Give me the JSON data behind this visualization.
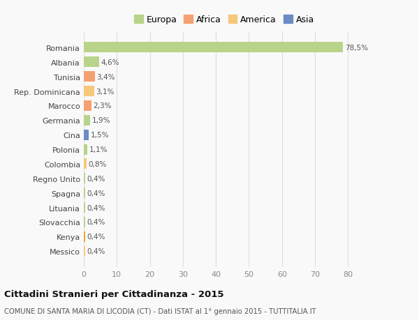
{
  "categories": [
    "Messico",
    "Kenya",
    "Slovacchia",
    "Lituania",
    "Spagna",
    "Regno Unito",
    "Colombia",
    "Polonia",
    "Cina",
    "Germania",
    "Marocco",
    "Rep. Dominicana",
    "Tunisia",
    "Albania",
    "Romania"
  ],
  "values": [
    0.4,
    0.4,
    0.4,
    0.4,
    0.4,
    0.4,
    0.8,
    1.1,
    1.5,
    1.9,
    2.3,
    3.1,
    3.4,
    4.6,
    78.5
  ],
  "labels": [
    "0,4%",
    "0,4%",
    "0,4%",
    "0,4%",
    "0,4%",
    "0,4%",
    "0,8%",
    "1,1%",
    "1,5%",
    "1,9%",
    "2,3%",
    "3,1%",
    "3,4%",
    "4,6%",
    "78,5%"
  ],
  "colors": [
    "#f5c87a",
    "#f5a623",
    "#b8d48a",
    "#b8d48a",
    "#b8d48a",
    "#b8d48a",
    "#f5c87a",
    "#b8d48a",
    "#6b8dc4",
    "#b8d48a",
    "#f5a070",
    "#f5c87a",
    "#f5a070",
    "#b8d48a",
    "#b8d48a"
  ],
  "legend": [
    {
      "label": "Europa",
      "color": "#b8d48a"
    },
    {
      "label": "Africa",
      "color": "#f5a070"
    },
    {
      "label": "America",
      "color": "#f5c87a"
    },
    {
      "label": "Asia",
      "color": "#6b8dc4"
    }
  ],
  "title": "Cittadini Stranieri per Cittadinanza - 2015",
  "subtitle": "COMUNE DI SANTA MARIA DI LICODIA (CT) - Dati ISTAT al 1° gennaio 2015 - TUTTITALIA.IT",
  "xlim": [
    0,
    85
  ],
  "xticks": [
    0,
    10,
    20,
    30,
    40,
    50,
    60,
    70,
    80
  ],
  "bg_color": "#f9f9f9",
  "grid_color": "#dddddd"
}
